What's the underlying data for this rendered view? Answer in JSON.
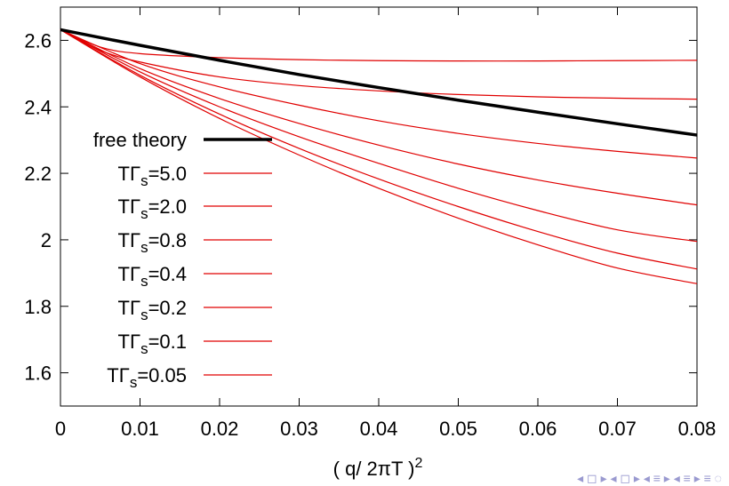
{
  "chart_data": {
    "type": "line",
    "title": "",
    "xlabel_main": "( q/ 2πT )",
    "xlabel_sup": "2",
    "ylabel": "",
    "xlim": [
      0,
      0.08
    ],
    "ylim": [
      1.5,
      2.7
    ],
    "x_ticks": [
      0,
      0.01,
      0.02,
      0.03,
      0.04,
      0.05,
      0.06,
      0.07,
      0.08
    ],
    "x_tick_labels": [
      "0",
      "0.01",
      "0.02",
      "0.03",
      "0.04",
      "0.05",
      "0.06",
      "0.07",
      "0.08"
    ],
    "y_ticks": [
      1.6,
      1.8,
      2.0,
      2.2,
      2.4,
      2.6
    ],
    "y_tick_labels": [
      "1.6",
      "1.8",
      "2",
      "2.2",
      "2.4",
      "2.6"
    ],
    "grid": false,
    "legend_position": "left",
    "series": [
      {
        "name": "free theory",
        "legend_main": "free theory",
        "legend_sub": "",
        "legend_tail": "",
        "color": "#000000",
        "width": 3.5,
        "x": [
          0,
          0.01,
          0.02,
          0.03,
          0.04,
          0.05,
          0.06,
          0.07,
          0.08
        ],
        "y": [
          2.632,
          2.585,
          2.54,
          2.497,
          2.458,
          2.42,
          2.384,
          2.349,
          2.315
        ]
      },
      {
        "name": "TΓs=5.0",
        "legend_main": "TΓ",
        "legend_sub": "s",
        "legend_tail": "=5.0",
        "color": "#e00000",
        "width": 1.2,
        "x": [
          0,
          0.005,
          0.01,
          0.02,
          0.03,
          0.04,
          0.05,
          0.06,
          0.07,
          0.08
        ],
        "y": [
          2.632,
          2.58,
          2.56,
          2.548,
          2.542,
          2.539,
          2.538,
          2.538,
          2.539,
          2.54
        ]
      },
      {
        "name": "TΓs=2.0",
        "legend_main": "TΓ",
        "legend_sub": "s",
        "legend_tail": "=2.0",
        "color": "#e00000",
        "width": 1.2,
        "x": [
          0,
          0.005,
          0.01,
          0.02,
          0.03,
          0.04,
          0.05,
          0.06,
          0.07,
          0.08
        ],
        "y": [
          2.632,
          2.57,
          2.535,
          2.49,
          2.464,
          2.448,
          2.437,
          2.43,
          2.426,
          2.423
        ]
      },
      {
        "name": "TΓs=0.8",
        "legend_main": "TΓ",
        "legend_sub": "s",
        "legend_tail": "=0.8",
        "color": "#e00000",
        "width": 1.2,
        "x": [
          0,
          0.01,
          0.02,
          0.03,
          0.04,
          0.05,
          0.06,
          0.07,
          0.08
        ],
        "y": [
          2.632,
          2.53,
          2.46,
          2.405,
          2.358,
          2.32,
          2.29,
          2.266,
          2.246
        ]
      },
      {
        "name": "TΓs=0.4",
        "legend_main": "TΓ",
        "legend_sub": "s",
        "legend_tail": "=0.4",
        "color": "#e00000",
        "width": 1.2,
        "x": [
          0,
          0.01,
          0.02,
          0.03,
          0.04,
          0.05,
          0.06,
          0.07,
          0.08
        ],
        "y": [
          2.632,
          2.515,
          2.425,
          2.35,
          2.285,
          2.228,
          2.18,
          2.14,
          2.105
        ]
      },
      {
        "name": "TΓs=0.2",
        "legend_main": "TΓ",
        "legend_sub": "s",
        "legend_tail": "=0.2",
        "color": "#e00000",
        "width": 1.2,
        "x": [
          0,
          0.01,
          0.02,
          0.03,
          0.04,
          0.05,
          0.06,
          0.07,
          0.08
        ],
        "y": [
          2.632,
          2.505,
          2.4,
          2.31,
          2.23,
          2.155,
          2.088,
          2.03,
          1.995
        ]
      },
      {
        "name": "TΓs=0.1",
        "legend_main": "TΓ",
        "legend_sub": "s",
        "legend_tail": "=0.1",
        "color": "#e00000",
        "width": 1.2,
        "x": [
          0,
          0.01,
          0.02,
          0.03,
          0.04,
          0.05,
          0.06,
          0.07,
          0.08
        ],
        "y": [
          2.632,
          2.495,
          2.378,
          2.275,
          2.183,
          2.1,
          2.025,
          1.96,
          1.912
        ]
      },
      {
        "name": "TΓs=0.05",
        "legend_main": "TΓ",
        "legend_sub": "s",
        "legend_tail": "=0.05",
        "color": "#e00000",
        "width": 1.2,
        "x": [
          0,
          0.01,
          0.02,
          0.03,
          0.04,
          0.05,
          0.06,
          0.07,
          0.08
        ],
        "y": [
          2.632,
          2.49,
          2.365,
          2.255,
          2.155,
          2.065,
          1.985,
          1.915,
          1.868
        ]
      }
    ]
  },
  "ui": {
    "nav_glyphs": "◂ ◻ ▸ ◂ ◻ ▸ ◂ ≡ ▸ ◂ ≡ ▸ ≡ ◌"
  }
}
